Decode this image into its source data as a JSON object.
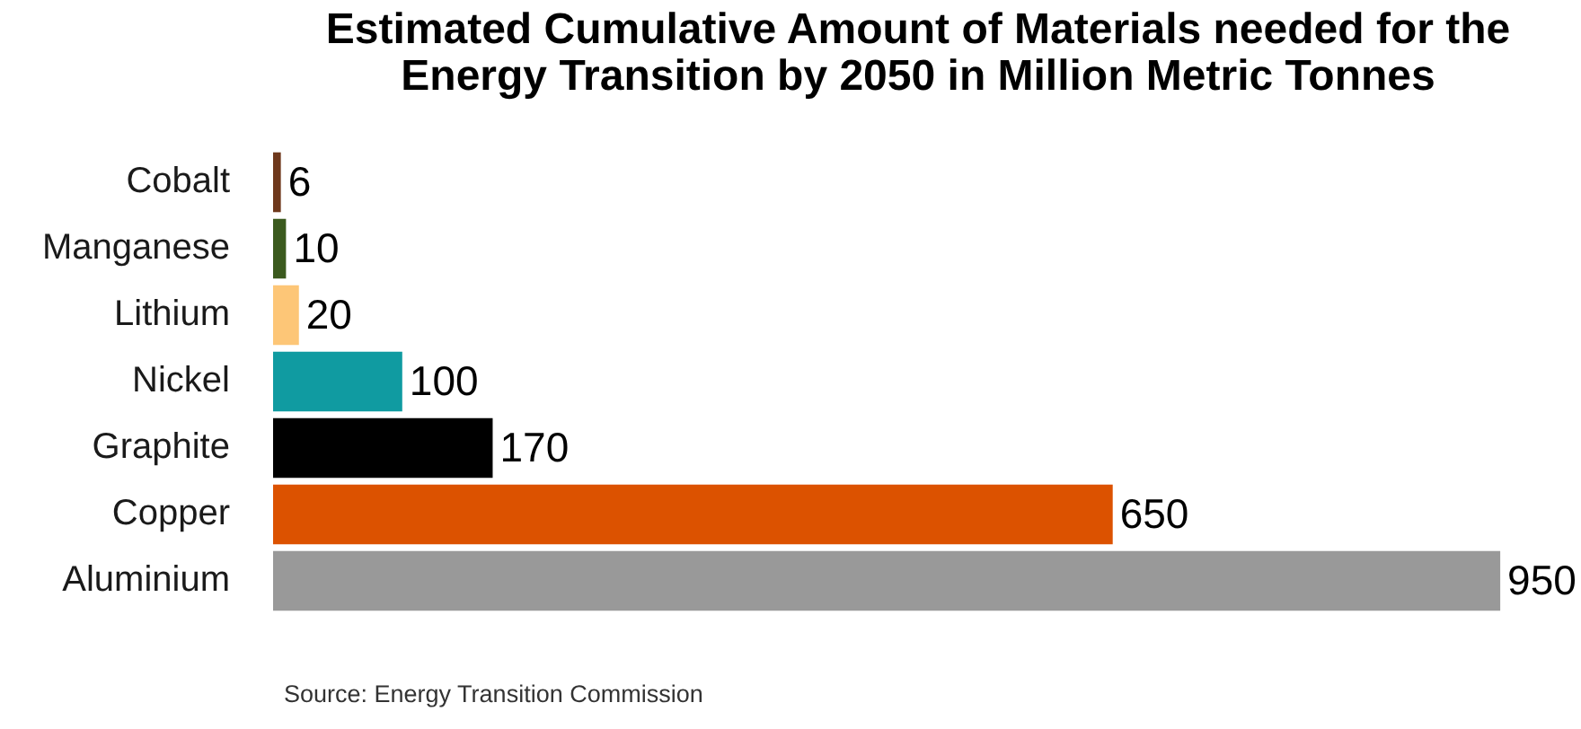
{
  "chart_data": {
    "type": "bar",
    "orientation": "horizontal",
    "title": "Estimated Cumulative Amount of Materials needed for the Energy Transition by 2050 in Million Metric Tonnes",
    "categories": [
      "Cobalt",
      "Manganese",
      "Lithium",
      "Nickel",
      "Graphite",
      "Copper",
      "Aluminium"
    ],
    "values": [
      6,
      10,
      20,
      100,
      170,
      650,
      950
    ],
    "colors": [
      "#6e381c",
      "#3b5a1e",
      "#fdc677",
      "#109ba1",
      "#000000",
      "#dc5200",
      "#999999"
    ],
    "data_labels": true,
    "tick_labels": "y",
    "grid": false,
    "legend": false,
    "annotations": [
      "Source: Energy Transition Commission"
    ]
  }
}
